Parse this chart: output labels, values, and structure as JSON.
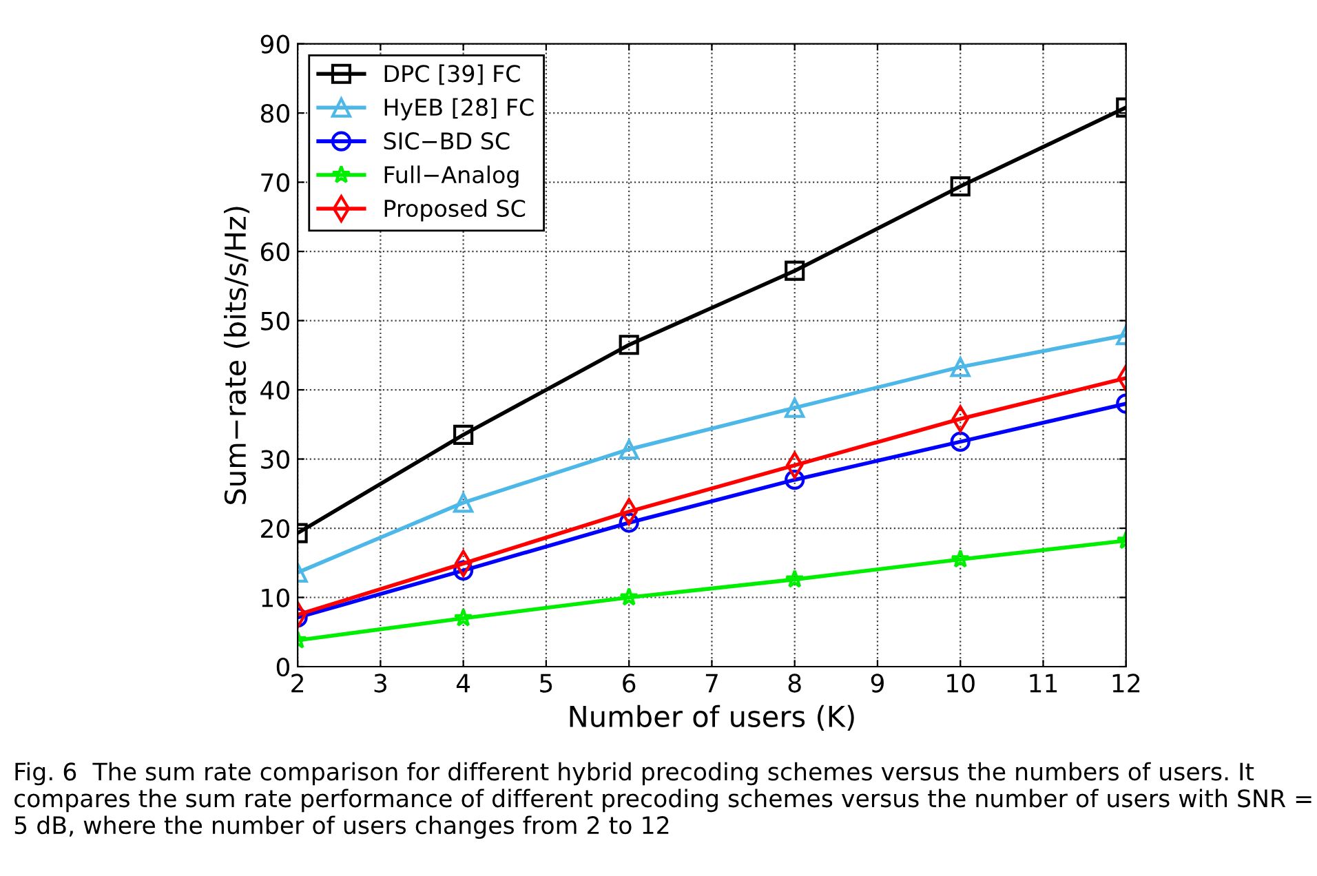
{
  "chart_data": {
    "type": "line",
    "xlabel": "Number of users (K)",
    "ylabel": "Sum−rate (bits/s/Hz)",
    "x": [
      2,
      4,
      6,
      8,
      10,
      12
    ],
    "series": [
      {
        "name": "DPC [39] FC",
        "color": "#000000",
        "marker": "square",
        "values": [
          19.3,
          33.5,
          46.5,
          57.2,
          69.4,
          80.8
        ]
      },
      {
        "name": "HyEB [28] FC",
        "color": "#4db8e8",
        "marker": "triangle",
        "values": [
          13.6,
          23.7,
          31.4,
          37.4,
          43.3,
          47.9
        ]
      },
      {
        "name": "SIC−BD SC",
        "color": "#0000ff",
        "marker": "circle",
        "values": [
          7.1,
          13.9,
          20.8,
          27.0,
          32.5,
          38.0
        ]
      },
      {
        "name": "Full−Analog",
        "color": "#00ee00",
        "marker": "star",
        "values": [
          3.8,
          7.0,
          10.0,
          12.6,
          15.5,
          18.2
        ]
      },
      {
        "name": "Proposed SC",
        "color": "#ff0000",
        "marker": "diamond",
        "values": [
          7.5,
          14.9,
          22.4,
          29.1,
          35.8,
          41.7
        ]
      }
    ],
    "xlim": [
      2,
      12
    ],
    "xticks": [
      2,
      3,
      4,
      5,
      6,
      7,
      8,
      9,
      10,
      11,
      12
    ],
    "ylim": [
      0,
      90
    ],
    "yticks": [
      0,
      10,
      20,
      30,
      40,
      50,
      60,
      70,
      80,
      90
    ],
    "grid": true,
    "legend": "top left",
    "line_style": "solid",
    "annotations": [
      "Fig. 6  The sum rate comparison for different hybrid precoding schemes versus the numbers of users. It compares the sum rate performance of different precoding schemes versus the number of users with SNR = 5 dB, where the number of users changes from 2 to 12"
    ]
  }
}
